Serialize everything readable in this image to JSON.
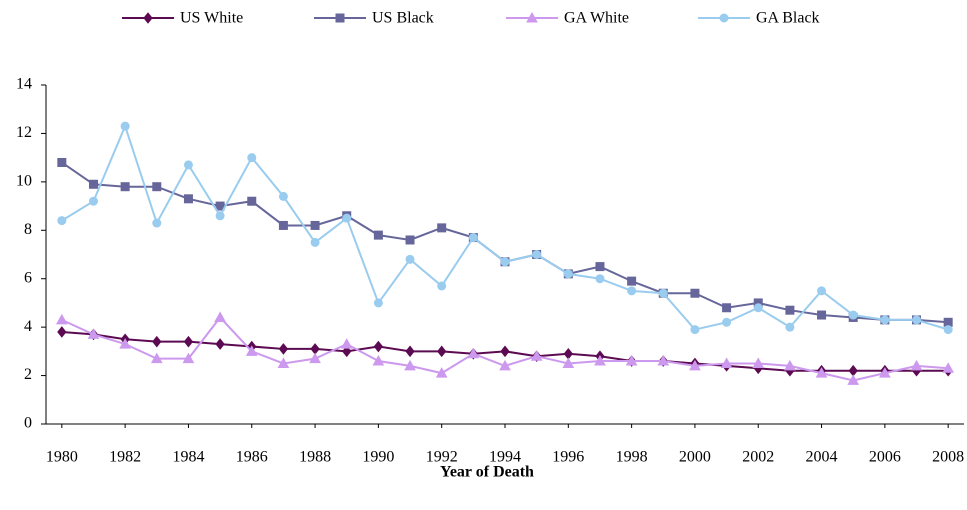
{
  "chart_data": {
    "type": "line",
    "x_label": "Year of Death",
    "x": [
      1980,
      1981,
      1982,
      1983,
      1984,
      1985,
      1986,
      1987,
      1988,
      1989,
      1990,
      1991,
      1992,
      1993,
      1994,
      1995,
      1996,
      1997,
      1998,
      1999,
      2000,
      2001,
      2002,
      2003,
      2004,
      2005,
      2006,
      2007,
      2008
    ],
    "series": [
      {
        "name": "US White",
        "color": "#5c0a52",
        "marker": "diamond",
        "values": [
          3.8,
          3.7,
          3.5,
          3.4,
          3.4,
          3.3,
          3.2,
          3.1,
          3.1,
          3.0,
          3.2,
          3.0,
          3.0,
          2.9,
          3.0,
          2.8,
          2.9,
          2.8,
          2.6,
          2.6,
          2.5,
          2.4,
          2.3,
          2.2,
          2.2,
          2.2,
          2.2,
          2.2,
          2.2
        ]
      },
      {
        "name": "US Black",
        "color": "#66669a",
        "marker": "square",
        "values": [
          10.8,
          9.9,
          9.8,
          9.8,
          9.3,
          9.0,
          9.2,
          8.2,
          8.2,
          8.6,
          7.8,
          7.6,
          8.1,
          7.7,
          6.7,
          7.0,
          6.2,
          6.5,
          5.9,
          5.4,
          5.4,
          4.8,
          5.0,
          4.7,
          4.5,
          4.4,
          4.3,
          4.3,
          4.2
        ]
      },
      {
        "name": "GA White",
        "color": "#cc99ee",
        "marker": "triangle",
        "values": [
          4.3,
          3.7,
          3.3,
          2.7,
          2.7,
          4.4,
          3.0,
          2.5,
          2.7,
          3.3,
          2.6,
          2.4,
          2.1,
          2.9,
          2.4,
          2.8,
          2.5,
          2.6,
          2.6,
          2.6,
          2.4,
          2.5,
          2.5,
          2.4,
          2.1,
          1.8,
          2.1,
          2.4,
          2.3
        ]
      },
      {
        "name": "GA Black",
        "color": "#99ccee",
        "marker": "circle",
        "values": [
          8.4,
          9.2,
          12.3,
          8.3,
          10.7,
          8.6,
          11.0,
          9.4,
          7.5,
          8.5,
          5.0,
          6.8,
          5.7,
          7.7,
          6.7,
          7.0,
          6.2,
          6.0,
          5.5,
          5.4,
          3.9,
          4.2,
          4.8,
          4.0,
          5.5,
          4.5,
          4.3,
          4.3,
          3.9
        ]
      }
    ],
    "xlim": [
      1979.5,
      2008.5
    ],
    "xticks": [
      1980,
      1982,
      1984,
      1986,
      1988,
      1990,
      1992,
      1994,
      1996,
      1998,
      2000,
      2002,
      2004,
      2006,
      2008
    ],
    "ylim": [
      0,
      14
    ],
    "yticks": [
      0,
      2,
      4,
      6,
      8,
      10,
      12,
      14
    ],
    "grid": false,
    "legend": "top"
  }
}
